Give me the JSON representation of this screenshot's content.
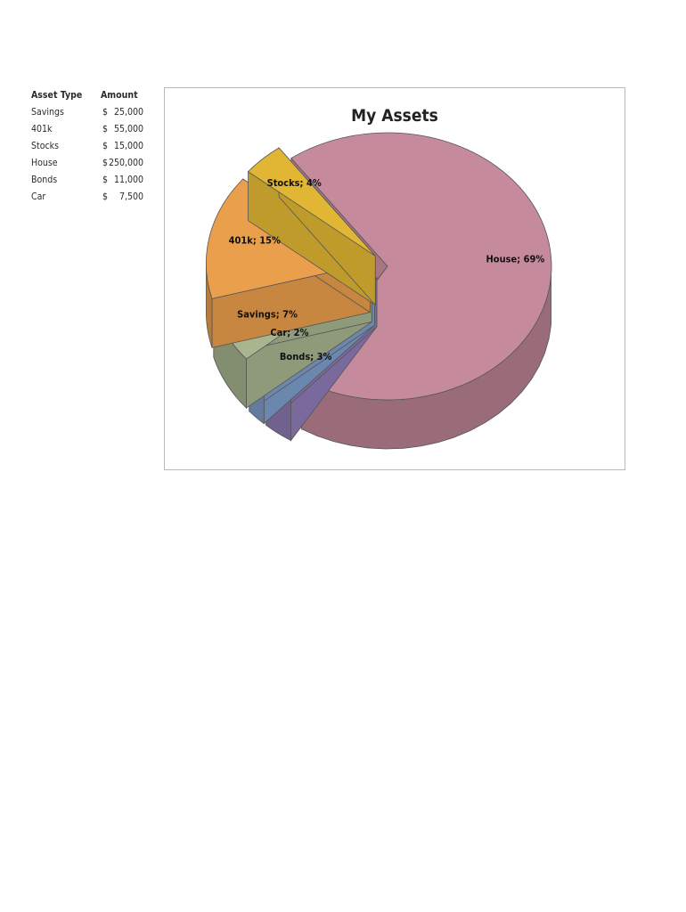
{
  "table": {
    "header": {
      "type": "Asset Type",
      "amount": "Amount"
    },
    "rows": [
      {
        "type": "Savings",
        "currency": "$",
        "amount": "25,000"
      },
      {
        "type": "401k",
        "currency": "$",
        "amount": "55,000"
      },
      {
        "type": "Stocks",
        "currency": "$",
        "amount": "15,000"
      },
      {
        "type": "House",
        "currency": "$",
        "amount": "250,000"
      },
      {
        "type": "Bonds",
        "currency": "$",
        "amount": "11,000"
      },
      {
        "type": "Car",
        "currency": "$",
        "amount": "7,500"
      }
    ]
  },
  "chart_data": {
    "type": "pie",
    "title": "My Assets",
    "style": "3d-exploded",
    "slices": [
      {
        "label": "House",
        "value": 250000,
        "percent_label": "House; 69%",
        "color": "#c68a9d"
      },
      {
        "label": "Bonds",
        "value": 11000,
        "percent_label": "Bonds; 3%",
        "color": "#8f7cb7"
      },
      {
        "label": "Car",
        "value": 7500,
        "percent_label": "Car; 2%",
        "color": "#7f9fcb"
      },
      {
        "label": "Savings",
        "value": 25000,
        "percent_label": "Savings; 7%",
        "color": "#a8b58f"
      },
      {
        "label": "401k",
        "value": 55000,
        "percent_label": "401k; 15%",
        "color": "#ea9f4d"
      },
      {
        "label": "Stocks",
        "value": 15000,
        "percent_label": "Stocks; 4%",
        "color": "#e1b634"
      }
    ]
  }
}
